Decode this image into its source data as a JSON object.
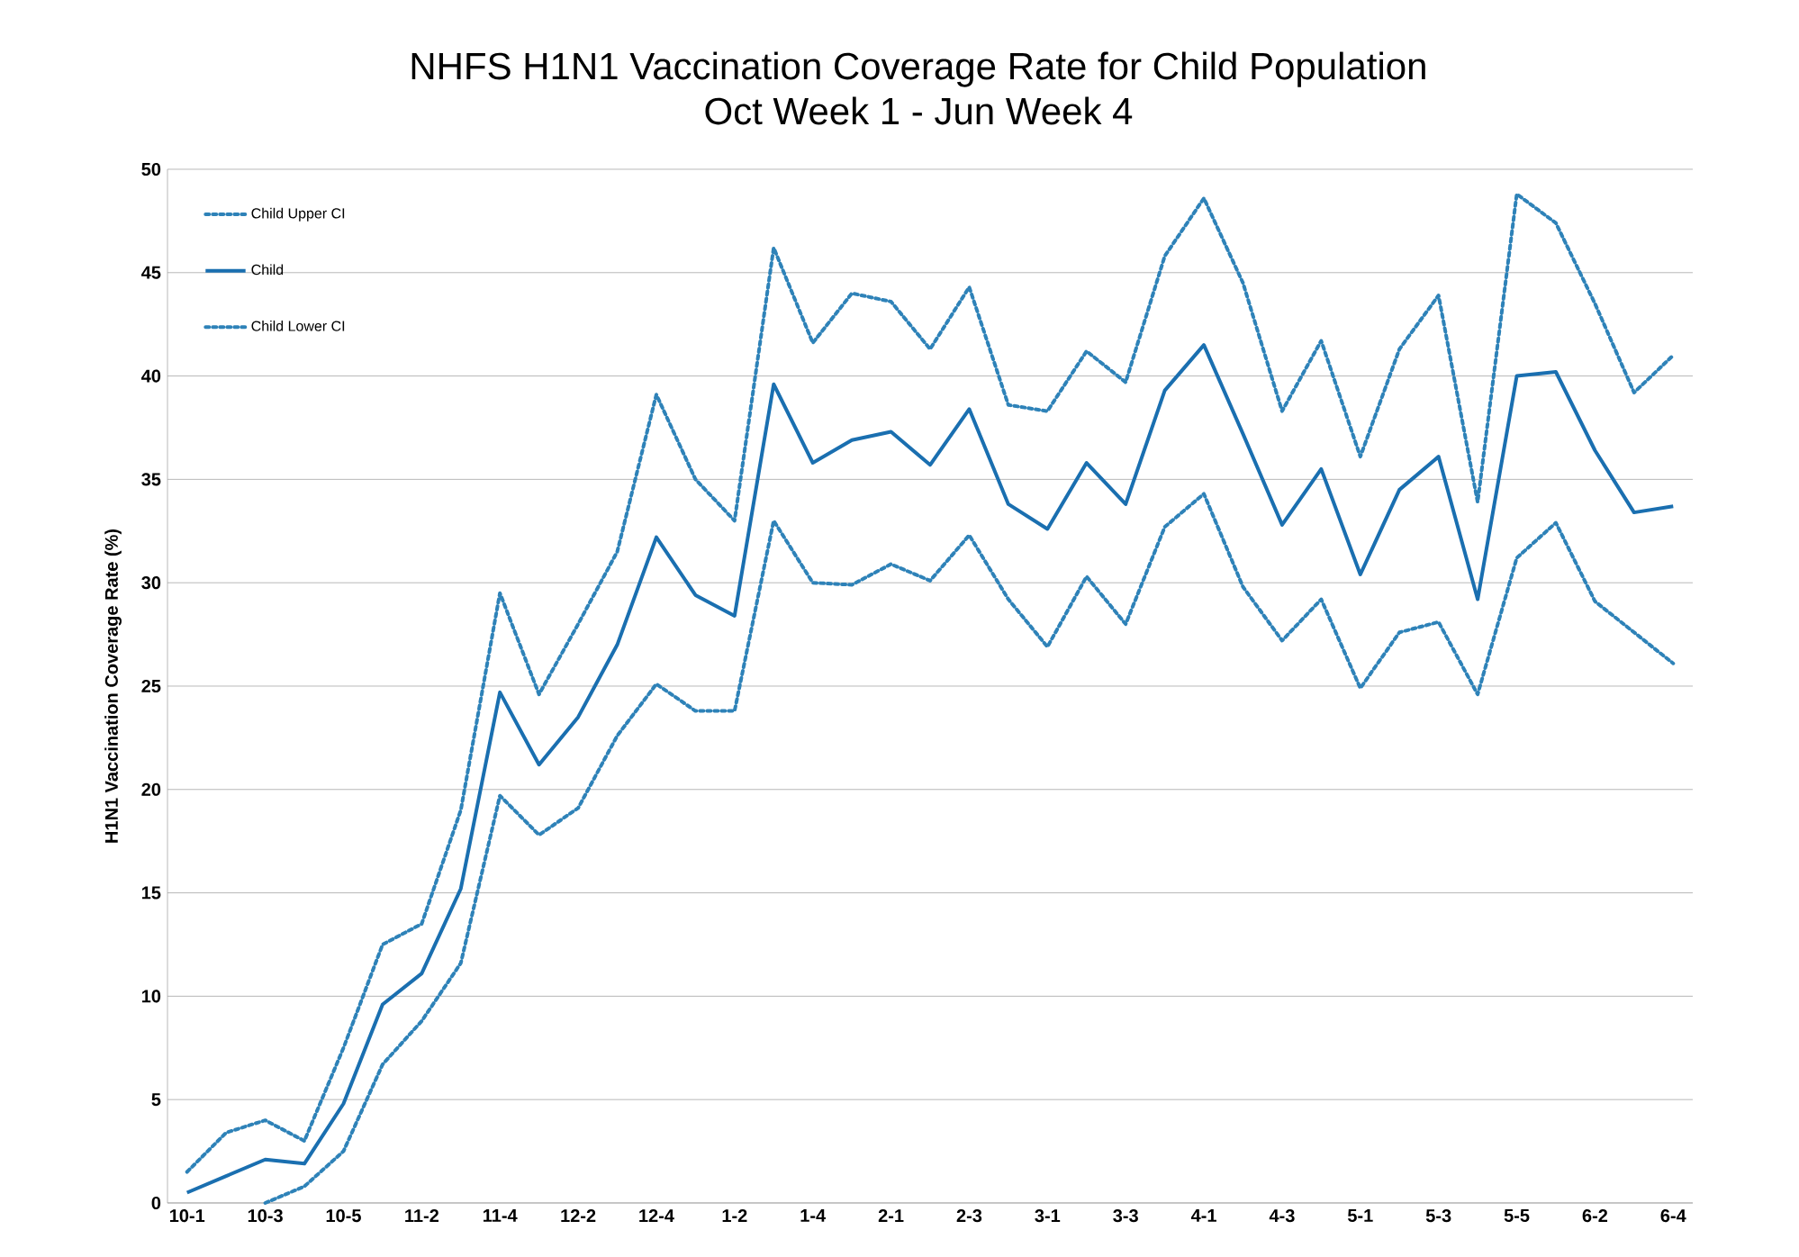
{
  "chart_data": {
    "type": "line",
    "title": "NHFS H1N1 Vaccination Coverage Rate for Child Population",
    "subtitle": "Oct Week 1 - Jun Week 4",
    "ylabel": "H1N1 Vaccination Coverage Rate (%)",
    "categories": [
      "10-1",
      null,
      "10-3",
      null,
      "10-5",
      null,
      "11-2",
      null,
      "11-4",
      null,
      "12-2",
      null,
      "12-4",
      null,
      "1-2",
      null,
      "1-4",
      null,
      "2-1",
      null,
      "2-3",
      null,
      "3-1",
      null,
      "3-3",
      null,
      "4-1",
      null,
      "4-3",
      null,
      "5-1",
      null,
      "5-3",
      null,
      "5-5",
      null,
      "6-2",
      null,
      "6-4"
    ],
    "series": [
      {
        "name": "Child Upper CI",
        "color": "#2e82b8",
        "line_style": "dotted",
        "values": [
          1.5,
          3.4,
          4.0,
          3.0,
          7.5,
          12.5,
          13.5,
          19.0,
          29.5,
          24.6,
          28.0,
          31.5,
          39.1,
          35.0,
          33.0,
          46.2,
          41.6,
          44.0,
          43.6,
          41.3,
          44.3,
          38.6,
          38.3,
          41.2,
          39.7,
          45.8,
          48.6,
          44.5,
          38.3,
          41.7,
          36.1,
          41.3,
          43.9,
          33.9,
          48.8,
          47.4,
          43.5,
          39.2,
          41.0
        ]
      },
      {
        "name": "Child",
        "color": "#1a6fb0",
        "line_style": "solid",
        "values": [
          0.5,
          1.3,
          2.1,
          1.9,
          4.8,
          9.6,
          11.1,
          15.2,
          24.7,
          21.2,
          23.5,
          27.0,
          32.2,
          29.4,
          28.4,
          39.6,
          35.8,
          36.9,
          37.3,
          35.7,
          38.4,
          33.8,
          32.6,
          35.8,
          33.8,
          39.3,
          41.5,
          37.2,
          32.8,
          35.5,
          30.4,
          34.5,
          36.1,
          29.2,
          40.0,
          40.2,
          36.4,
          33.4,
          33.7
        ]
      },
      {
        "name": "Child Lower CI",
        "color": "#2e82b8",
        "line_style": "dotted",
        "values": [
          null,
          null,
          0.0,
          0.8,
          2.5,
          6.7,
          8.8,
          11.6,
          19.7,
          17.8,
          19.1,
          22.6,
          25.1,
          23.8,
          23.8,
          33.0,
          30.0,
          29.9,
          30.9,
          30.1,
          32.3,
          29.2,
          26.9,
          30.3,
          28.0,
          32.7,
          34.3,
          29.8,
          27.2,
          29.2,
          24.9,
          27.6,
          28.1,
          24.6,
          31.2,
          32.9,
          29.1,
          27.6,
          26.1
        ]
      }
    ],
    "ylim": [
      0,
      50
    ],
    "yticks": [
      0,
      5,
      10,
      15,
      20,
      25,
      30,
      35,
      40,
      45,
      50
    ],
    "grid": "y",
    "legend": "top left",
    "marker": "none"
  }
}
